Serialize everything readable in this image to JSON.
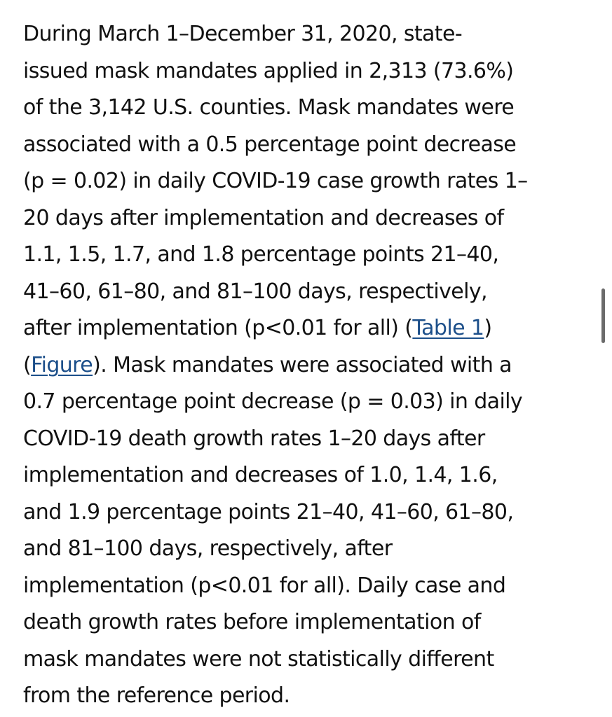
{
  "paragraph": {
    "line_01": "During March 1–December 31, 2020, state-",
    "line_02": "issued mask mandates applied in 2,313 (73.6%)",
    "line_03": "of the 3,142 U.S. counties. Mask mandates were",
    "line_04": "associated with a 0.5 percentage point decrease",
    "line_05": "(p = 0.02) in daily COVID-19 case growth rates 1–",
    "line_06": "20 days after implementation and decreases of",
    "line_07": "1.1, 1.5, 1.7, and 1.8 percentage points 21–40,",
    "line_08": "41–60, 61–80, and 81–100 days, respectively,",
    "line_09_before": "after implementation (p<0.01 for all) (",
    "line_09_link": "Table 1",
    "line_09_after": ")",
    "line_10_before": "(",
    "line_10_link": "Figure",
    "line_10_after": "). Mask mandates were associated with a",
    "line_11": "0.7 percentage point decrease (p = 0.03) in daily",
    "line_12": "COVID-19 death growth rates 1–20 days after",
    "line_13": "implementation and decreases of 1.0, 1.4, 1.6,",
    "line_14": "and 1.9 percentage points 21–40, 41–60, 61–80,",
    "line_15": "and 81–100 days, respectively, after",
    "line_16": "implementation (p<0.01 for all). Daily case and",
    "line_17": "death growth rates before implementation of",
    "line_18": "mask mandates were not statistically different",
    "line_19": "from the reference period."
  },
  "colors": {
    "text": "#111111",
    "link": "#1c4f8a",
    "scrollbar": "#6b6b6b",
    "background": "#ffffff"
  }
}
